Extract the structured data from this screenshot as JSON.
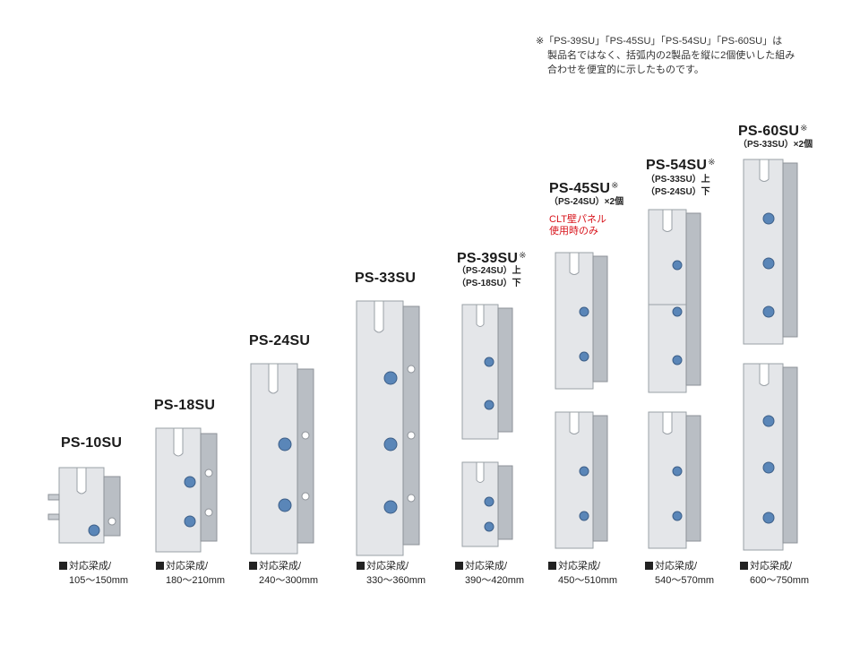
{
  "note": {
    "line1": "※「PS-39SU」「PS-45SU」「PS-54SU」「PS-60SU」は",
    "line2": "製品名ではなく、括弧内の2製品を縦に2個使いした組み",
    "line3": "合わせを便宜的に示したものです。"
  },
  "spec_label": "対応梁成/",
  "colors": {
    "steel_light": "#e6e8eb",
    "steel_mid": "#bfc3c8",
    "steel_dark": "#8d9298",
    "bolt_blue": "#5a86b8",
    "note_red": "#d8141c"
  },
  "products": [
    {
      "name": "PS-10SU",
      "range": "105〜150mm"
    },
    {
      "name": "PS-18SU",
      "range": "180〜210mm"
    },
    {
      "name": "PS-24SU",
      "range": "240〜300mm"
    },
    {
      "name": "PS-33SU",
      "range": "330〜360mm"
    },
    {
      "name": "PS-39SU",
      "mark": "※",
      "sub1": "（PS-24SU）上",
      "sub2": "（PS-18SU）下",
      "range": "390〜420mm"
    },
    {
      "name": "PS-45SU",
      "mark": "※",
      "sub1": "（PS-24SU）×2個",
      "red1": "CLT壁パネル",
      "red2": "使用時のみ",
      "range": "450〜510mm"
    },
    {
      "name": "PS-54SU",
      "mark": "※",
      "sub1": "（PS-33SU）上",
      "sub2": "（PS-24SU）下",
      "range": "540〜570mm"
    },
    {
      "name": "PS-60SU",
      "mark": "※",
      "sub1": "（PS-33SU）×2個",
      "range": "600〜750mm"
    }
  ]
}
